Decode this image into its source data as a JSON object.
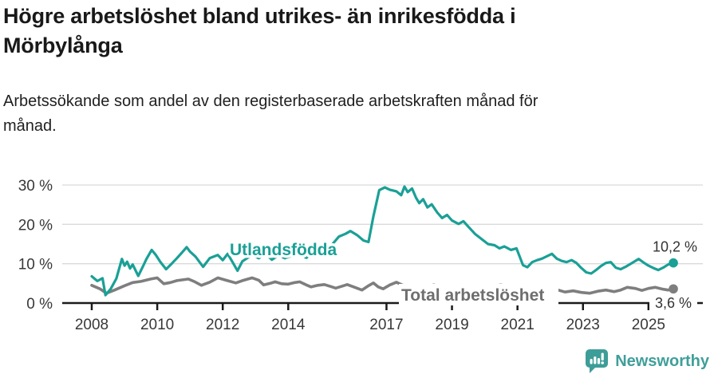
{
  "header": {
    "title_lines": [
      "Högre arbetslöshet bland utrikes- än inrikesfödda i",
      "Mörbylånga"
    ],
    "subtitle_lines": [
      "Arbetssökande som andel av den registerbaserade arbetskraften månad för",
      "månad."
    ]
  },
  "footer": {
    "brand": "Newsworthy",
    "logo_icon": "speech-bubble-bar-chart",
    "logo_color": "#3d9d98"
  },
  "chart_data": {
    "type": "line",
    "title": "Högre arbetslöshet bland utrikes- än inrikesfödda i Mörbylånga",
    "subtitle": "Arbetssökande som andel av den registerbaserade arbetskraften månad för månad.",
    "grid": true,
    "legend": "inline-labels",
    "x_axis": {
      "range": [
        2007.8,
        2026.6
      ],
      "ticks": [
        {
          "value": 2008,
          "label": "2008"
        },
        {
          "value": 2010,
          "label": "2010"
        },
        {
          "value": 2012,
          "label": "2012"
        },
        {
          "value": 2014,
          "label": "2014"
        },
        {
          "value": 2017,
          "label": "2017"
        },
        {
          "value": 2019,
          "label": "2019"
        },
        {
          "value": 2021,
          "label": "2021"
        },
        {
          "value": 2023,
          "label": "2023"
        },
        {
          "value": 2025,
          "label": "2025"
        }
      ]
    },
    "y_axis": {
      "range": [
        0,
        30
      ],
      "unit": "%",
      "ticks": [
        {
          "value": 0,
          "label": "0 %"
        },
        {
          "value": 10,
          "label": "10 %"
        },
        {
          "value": 20,
          "label": "20 %"
        },
        {
          "value": 30,
          "label": "30 %"
        }
      ]
    },
    "series": [
      {
        "name": "Utlandsfödda",
        "color": "#1aa096",
        "end_label": "10,2 %",
        "end_value": 10.2,
        "points": [
          [
            2008.0,
            6.8
          ],
          [
            2008.17,
            5.6
          ],
          [
            2008.33,
            6.3
          ],
          [
            2008.42,
            2.0
          ],
          [
            2008.58,
            3.6
          ],
          [
            2008.75,
            6.2
          ],
          [
            2008.92,
            11.2
          ],
          [
            2009.0,
            9.5
          ],
          [
            2009.08,
            10.5
          ],
          [
            2009.17,
            8.8
          ],
          [
            2009.25,
            9.8
          ],
          [
            2009.42,
            6.9
          ],
          [
            2009.58,
            9.6
          ],
          [
            2009.67,
            11.2
          ],
          [
            2009.83,
            13.5
          ],
          [
            2009.95,
            12.3
          ],
          [
            2010.1,
            10.4
          ],
          [
            2010.27,
            8.6
          ],
          [
            2010.45,
            10.1
          ],
          [
            2010.6,
            11.4
          ],
          [
            2010.75,
            12.8
          ],
          [
            2010.9,
            14.2
          ],
          [
            2011.0,
            13.1
          ],
          [
            2011.17,
            11.8
          ],
          [
            2011.4,
            9.2
          ],
          [
            2011.6,
            11.4
          ],
          [
            2011.85,
            12.2
          ],
          [
            2012.0,
            10.9
          ],
          [
            2012.15,
            12.5
          ],
          [
            2012.3,
            10.4
          ],
          [
            2012.45,
            8.2
          ],
          [
            2012.6,
            10.6
          ],
          [
            2012.78,
            11.6
          ],
          [
            2012.92,
            12.1
          ],
          [
            2013.1,
            11.4
          ],
          [
            2013.3,
            12.6
          ],
          [
            2013.5,
            11.0
          ],
          [
            2013.7,
            12.1
          ],
          [
            2013.9,
            11.4
          ],
          [
            2014.1,
            12.0
          ],
          [
            2014.3,
            12.7
          ],
          [
            2014.55,
            11.5
          ],
          [
            2014.8,
            13.1
          ],
          [
            2015.0,
            13.6
          ],
          [
            2015.3,
            14.5
          ],
          [
            2015.55,
            16.9
          ],
          [
            2015.75,
            17.6
          ],
          [
            2015.9,
            18.3
          ],
          [
            2016.1,
            17.3
          ],
          [
            2016.3,
            15.9
          ],
          [
            2016.45,
            15.5
          ],
          [
            2016.6,
            22.0
          ],
          [
            2016.78,
            28.7
          ],
          [
            2016.95,
            29.4
          ],
          [
            2017.1,
            28.8
          ],
          [
            2017.3,
            28.4
          ],
          [
            2017.45,
            27.4
          ],
          [
            2017.55,
            29.6
          ],
          [
            2017.65,
            28.2
          ],
          [
            2017.78,
            29.1
          ],
          [
            2017.9,
            26.8
          ],
          [
            2018.0,
            25.4
          ],
          [
            2018.12,
            26.4
          ],
          [
            2018.25,
            24.3
          ],
          [
            2018.38,
            25.1
          ],
          [
            2018.55,
            23.0
          ],
          [
            2018.7,
            21.6
          ],
          [
            2018.85,
            22.4
          ],
          [
            2019.0,
            21.0
          ],
          [
            2019.2,
            20.1
          ],
          [
            2019.35,
            20.8
          ],
          [
            2019.5,
            19.4
          ],
          [
            2019.7,
            17.6
          ],
          [
            2019.9,
            16.3
          ],
          [
            2020.1,
            15.0
          ],
          [
            2020.3,
            14.7
          ],
          [
            2020.45,
            13.9
          ],
          [
            2020.6,
            14.4
          ],
          [
            2020.8,
            13.5
          ],
          [
            2020.97,
            13.9
          ],
          [
            2021.17,
            9.6
          ],
          [
            2021.3,
            9.1
          ],
          [
            2021.45,
            10.4
          ],
          [
            2021.6,
            10.9
          ],
          [
            2021.75,
            11.3
          ],
          [
            2021.9,
            11.9
          ],
          [
            2022.05,
            12.5
          ],
          [
            2022.2,
            11.3
          ],
          [
            2022.35,
            10.7
          ],
          [
            2022.5,
            10.4
          ],
          [
            2022.65,
            10.9
          ],
          [
            2022.8,
            10.2
          ],
          [
            2022.95,
            8.9
          ],
          [
            2023.1,
            7.8
          ],
          [
            2023.25,
            7.5
          ],
          [
            2023.4,
            8.4
          ],
          [
            2023.55,
            9.4
          ],
          [
            2023.7,
            10.2
          ],
          [
            2023.85,
            10.4
          ],
          [
            2024.0,
            9.0
          ],
          [
            2024.15,
            8.6
          ],
          [
            2024.3,
            9.2
          ],
          [
            2024.5,
            10.2
          ],
          [
            2024.7,
            11.2
          ],
          [
            2024.85,
            10.3
          ],
          [
            2025.0,
            9.5
          ],
          [
            2025.15,
            8.9
          ],
          [
            2025.3,
            8.4
          ],
          [
            2025.45,
            9.0
          ],
          [
            2025.6,
            9.8
          ],
          [
            2025.76,
            10.2
          ]
        ]
      },
      {
        "name": "Total arbetslöshet",
        "color": "#7e7e7e",
        "label_color": "#6e6e6e",
        "end_label": "3,6 %",
        "end_value": 3.6,
        "points": [
          [
            2008.0,
            4.5
          ],
          [
            2008.25,
            3.6
          ],
          [
            2008.45,
            2.5
          ],
          [
            2008.7,
            3.3
          ],
          [
            2009.0,
            4.4
          ],
          [
            2009.25,
            5.2
          ],
          [
            2009.5,
            5.5
          ],
          [
            2009.8,
            6.1
          ],
          [
            2010.0,
            6.4
          ],
          [
            2010.2,
            4.9
          ],
          [
            2010.4,
            5.2
          ],
          [
            2010.6,
            5.7
          ],
          [
            2010.95,
            6.1
          ],
          [
            2011.15,
            5.4
          ],
          [
            2011.35,
            4.5
          ],
          [
            2011.6,
            5.3
          ],
          [
            2011.85,
            6.4
          ],
          [
            2012.1,
            5.8
          ],
          [
            2012.4,
            5.1
          ],
          [
            2012.6,
            5.7
          ],
          [
            2012.9,
            6.4
          ],
          [
            2013.1,
            5.8
          ],
          [
            2013.25,
            4.6
          ],
          [
            2013.45,
            5.0
          ],
          [
            2013.6,
            5.4
          ],
          [
            2013.8,
            4.9
          ],
          [
            2014.0,
            4.8
          ],
          [
            2014.2,
            5.2
          ],
          [
            2014.35,
            5.4
          ],
          [
            2014.55,
            4.6
          ],
          [
            2014.7,
            4.1
          ],
          [
            2014.9,
            4.5
          ],
          [
            2015.1,
            4.7
          ],
          [
            2015.3,
            4.2
          ],
          [
            2015.45,
            3.8
          ],
          [
            2015.65,
            4.3
          ],
          [
            2015.8,
            4.7
          ],
          [
            2016.0,
            4.1
          ],
          [
            2016.25,
            3.3
          ],
          [
            2016.45,
            4.4
          ],
          [
            2016.6,
            5.1
          ],
          [
            2016.75,
            4.1
          ],
          [
            2016.9,
            3.6
          ],
          [
            2017.1,
            4.6
          ],
          [
            2017.3,
            5.3
          ],
          [
            2017.45,
            4.7
          ],
          [
            2017.7,
            4.0
          ],
          [
            2017.95,
            3.6
          ],
          [
            2018.2,
            4.2
          ],
          [
            2018.45,
            4.6
          ],
          [
            2018.7,
            3.9
          ],
          [
            2019.0,
            3.6
          ],
          [
            2019.25,
            4.1
          ],
          [
            2019.5,
            4.4
          ],
          [
            2019.75,
            3.8
          ],
          [
            2020.0,
            3.7
          ],
          [
            2020.25,
            4.3
          ],
          [
            2020.5,
            4.6
          ],
          [
            2020.75,
            4.0
          ],
          [
            2021.0,
            3.8
          ],
          [
            2021.25,
            3.5
          ],
          [
            2021.5,
            3.9
          ],
          [
            2021.75,
            3.4
          ],
          [
            2022.0,
            3.2
          ],
          [
            2022.2,
            3.4
          ],
          [
            2022.45,
            2.8
          ],
          [
            2022.7,
            3.1
          ],
          [
            2022.95,
            2.7
          ],
          [
            2023.2,
            2.5
          ],
          [
            2023.45,
            3.0
          ],
          [
            2023.7,
            3.3
          ],
          [
            2023.95,
            2.9
          ],
          [
            2024.15,
            3.3
          ],
          [
            2024.35,
            4.0
          ],
          [
            2024.6,
            3.7
          ],
          [
            2024.8,
            3.2
          ],
          [
            2025.0,
            3.7
          ],
          [
            2025.2,
            4.0
          ],
          [
            2025.45,
            3.5
          ],
          [
            2025.6,
            3.3
          ],
          [
            2025.76,
            3.6
          ]
        ]
      }
    ]
  }
}
